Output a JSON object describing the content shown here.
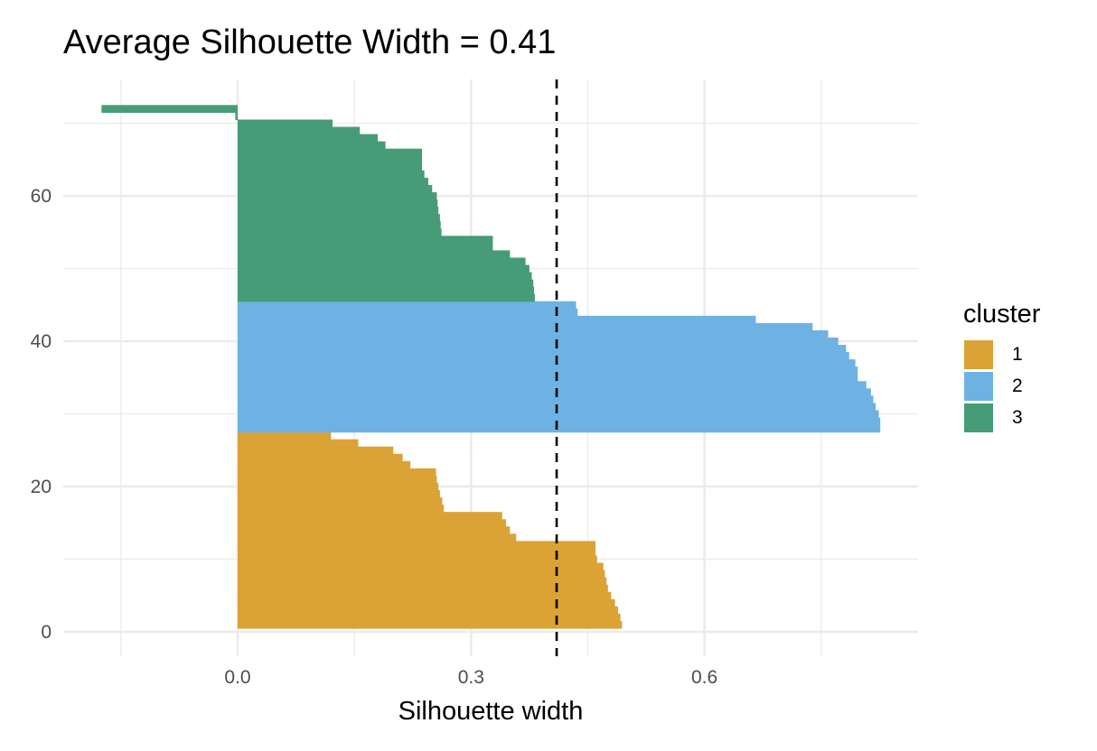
{
  "chart_data": {
    "type": "bar",
    "orientation": "horizontal",
    "title": "Average Silhouette Width = 0.41",
    "xlabel": "Silhouette width",
    "ylabel": "",
    "xlim": [
      -0.225,
      0.875
    ],
    "ylim": [
      -3.5,
      75.5
    ],
    "x_ticks": [
      "0.0",
      "0.3",
      "0.6"
    ],
    "x_tick_values": [
      0.0,
      0.3,
      0.6
    ],
    "y_ticks": [
      "0",
      "20",
      "40",
      "60"
    ],
    "y_tick_values": [
      0,
      20,
      40,
      60
    ],
    "grid": true,
    "average_line": {
      "value": 0.41,
      "style": "dashed",
      "color": "#000000"
    },
    "legend": {
      "title": "cluster",
      "position": "right",
      "entries": [
        "1",
        "2",
        "3"
      ]
    },
    "series": [
      {
        "name": "1",
        "color": "#DBA236",
        "rows": [
          1,
          27
        ],
        "values": [
          0.494,
          0.492,
          0.489,
          0.485,
          0.48,
          0.476,
          0.474,
          0.472,
          0.47,
          0.462,
          0.46,
          0.46,
          0.358,
          0.35,
          0.345,
          0.34,
          0.265,
          0.263,
          0.26,
          0.258,
          0.256,
          0.255,
          0.222,
          0.212,
          0.2,
          0.155,
          0.12
        ]
      },
      {
        "name": "2",
        "color": "#6EB2E3",
        "rows": [
          28,
          45
        ],
        "values": [
          0.826,
          0.826,
          0.824,
          0.82,
          0.817,
          0.814,
          0.808,
          0.797,
          0.797,
          0.794,
          0.786,
          0.782,
          0.772,
          0.759,
          0.739,
          0.666,
          0.437,
          0.435
        ]
      },
      {
        "name": "3",
        "color": "#469C76",
        "rows": [
          46,
          72
        ],
        "values": [
          0.382,
          0.381,
          0.38,
          0.378,
          0.375,
          0.37,
          0.35,
          0.328,
          0.328,
          0.262,
          0.261,
          0.26,
          0.258,
          0.257,
          0.256,
          0.25,
          0.245,
          0.24,
          0.237,
          0.237,
          0.237,
          0.19,
          0.18,
          0.157,
          0.122,
          -0.003,
          -0.175
        ]
      }
    ]
  }
}
